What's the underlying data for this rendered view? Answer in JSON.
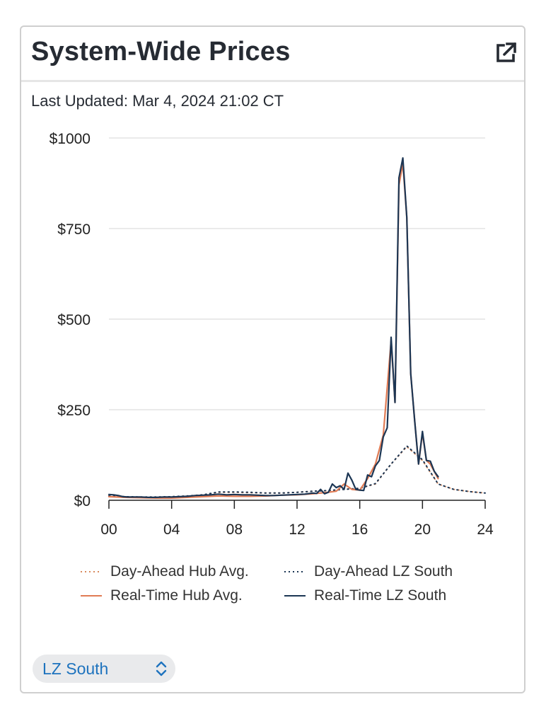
{
  "title": "System-Wide Prices",
  "last_updated_label": "Last Updated:",
  "last_updated_value": "Mar 4, 2024 21:02 CT",
  "icons": {
    "external_link": "external-link-icon",
    "selector": "chevron-up-down-icon"
  },
  "selector": {
    "value": "LZ South"
  },
  "colors": {
    "day_ahead_hub": "#d98b5e",
    "day_ahead_lz": "#1c3654",
    "real_time_hub": "#e07b54",
    "real_time_lz": "#1c3654",
    "grid": "#e3e3e3",
    "accent": "#1e73be"
  },
  "chart_data": {
    "type": "line",
    "title": "",
    "xlabel": "",
    "ylabel": "",
    "xlim": [
      0,
      24
    ],
    "ylim": [
      0,
      1000
    ],
    "x_ticks": [
      "00",
      "04",
      "08",
      "12",
      "16",
      "20",
      "24"
    ],
    "x_tick_values": [
      0,
      4,
      8,
      12,
      16,
      20,
      24
    ],
    "y_ticks": [
      "$0",
      "$250",
      "$500",
      "$750",
      "$1000"
    ],
    "y_tick_values": [
      0,
      250,
      500,
      750,
      1000
    ],
    "grid": "horizontal",
    "legend_position": "bottom",
    "series": [
      {
        "name": "Day-Ahead Hub Avg.",
        "style": "dotted",
        "color": "#d98b5e",
        "x": [
          0,
          1,
          2,
          3,
          4,
          5,
          6,
          7,
          8,
          9,
          10,
          11,
          12,
          13,
          14,
          15,
          16,
          17,
          18,
          19,
          20,
          21,
          22,
          23,
          24
        ],
        "y": [
          12,
          10,
          9,
          9,
          10,
          12,
          15,
          22,
          22,
          21,
          20,
          20,
          22,
          25,
          27,
          30,
          33,
          45,
          100,
          148,
          110,
          45,
          30,
          24,
          20
        ]
      },
      {
        "name": "Day-Ahead LZ South",
        "style": "dotted",
        "color": "#1c3654",
        "x": [
          0,
          1,
          2,
          3,
          4,
          5,
          6,
          7,
          8,
          9,
          10,
          11,
          12,
          13,
          14,
          15,
          16,
          17,
          18,
          19,
          20,
          21,
          22,
          23,
          24
        ],
        "y": [
          12,
          10,
          9,
          9,
          10,
          12,
          15,
          23,
          23,
          22,
          20,
          20,
          22,
          25,
          27,
          30,
          33,
          46,
          100,
          150,
          112,
          45,
          30,
          24,
          20
        ]
      },
      {
        "name": "Real-Time Hub Avg.",
        "style": "solid",
        "color": "#e07b54",
        "x": [
          0,
          0.5,
          1,
          2,
          3,
          4,
          5,
          6,
          7,
          8,
          9,
          10,
          11,
          12,
          13,
          14,
          14.5,
          15,
          15.5,
          16,
          16.5,
          17,
          17.5,
          18,
          18.25,
          18.5,
          18.75,
          19,
          19.25,
          19.5,
          19.75,
          20,
          20.25,
          20.5,
          21
        ],
        "y": [
          10,
          9,
          8,
          7,
          6,
          6,
          8,
          10,
          12,
          11,
          11,
          12,
          14,
          15,
          18,
          22,
          25,
          45,
          30,
          28,
          60,
          100,
          180,
          440,
          270,
          870,
          930,
          780,
          350,
          220,
          100,
          185,
          110,
          100,
          60
        ]
      },
      {
        "name": "Real-Time LZ South",
        "style": "solid",
        "color": "#1c3654",
        "x": [
          0,
          0.3,
          0.6,
          0.9,
          1.2,
          1.5,
          2,
          2.5,
          3,
          3.5,
          4,
          4.5,
          5,
          5.5,
          6,
          6.5,
          7,
          7.5,
          8,
          8.5,
          9,
          9.5,
          10,
          10.5,
          11,
          11.5,
          12,
          12.5,
          13,
          13.25,
          13.5,
          13.75,
          14,
          14.25,
          14.5,
          14.75,
          15,
          15.25,
          15.5,
          15.75,
          16,
          16.25,
          16.5,
          16.75,
          17,
          17.25,
          17.5,
          17.75,
          18,
          18.25,
          18.5,
          18.75,
          19,
          19.25,
          19.5,
          19.75,
          20,
          20.25,
          20.5,
          20.75,
          21
        ],
        "y": [
          16,
          15,
          13,
          10,
          9,
          9,
          9,
          8,
          8,
          9,
          9,
          10,
          11,
          13,
          14,
          15,
          17,
          15,
          16,
          15,
          15,
          14,
          13,
          13,
          14,
          15,
          16,
          17,
          20,
          19,
          30,
          18,
          22,
          45,
          35,
          40,
          30,
          75,
          55,
          30,
          28,
          27,
          70,
          65,
          95,
          110,
          175,
          200,
          450,
          270,
          890,
          945,
          780,
          350,
          220,
          100,
          190,
          110,
          108,
          80,
          65
        ]
      }
    ]
  }
}
